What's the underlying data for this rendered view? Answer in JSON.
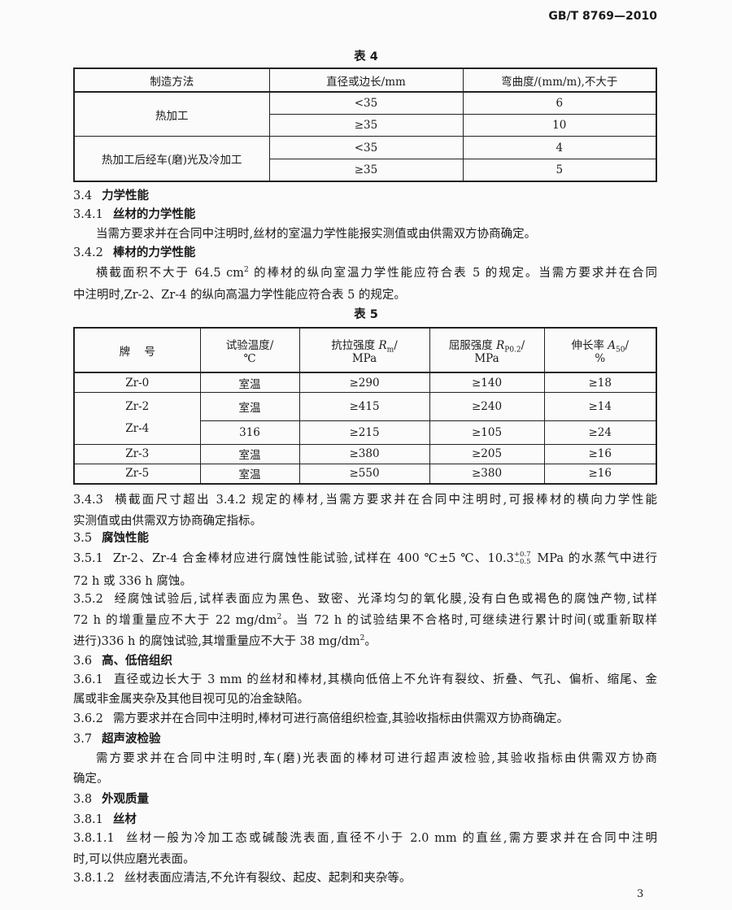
{
  "header": {
    "standard_no": "GB/T 8769—2010"
  },
  "table4": {
    "caption": "表 4",
    "headers": [
      "制造方法",
      "直径或边长/mm",
      "弯曲度/(mm/m),不大于"
    ],
    "groups": [
      {
        "method": "热加工",
        "rows": [
          [
            "<35",
            "6"
          ],
          [
            "≥35",
            "10"
          ]
        ]
      },
      {
        "method": "热加工后经车(磨)光及冷加工",
        "rows": [
          [
            "<35",
            "4"
          ],
          [
            "≥35",
            "5"
          ]
        ]
      }
    ]
  },
  "s3_4": {
    "num": "3.4",
    "title": "力学性能"
  },
  "s3_4_1": {
    "num": "3.4.1",
    "title": "丝材的力学性能",
    "p1": "当需方要求并在合同中注明时,丝材的室温力学性能报实测值或由供需双方协商确定。"
  },
  "s3_4_2": {
    "num": "3.4.2",
    "title": "棒材的力学性能",
    "l1a": "横截面积不大于 64.5 cm",
    "l1sup": "2",
    "l1b": " 的棒材的纵向室温力学性能应符合表 5 的规定。当需方要求并在合同",
    "l2": "中注明时,Zr-2、Zr-4 的纵向高温力学性能应符合表 5 的规定。"
  },
  "table5": {
    "caption": "表 5",
    "headers": {
      "grade": "牌    号",
      "temp": [
        "试验温度/",
        "℃"
      ],
      "rm": {
        "pre": "抗拉强度 ",
        "sym": "R",
        "sub": "m",
        "post": "/",
        "unit": "MPa"
      },
      "rp": {
        "pre": "屈服强度 ",
        "sym": "R",
        "sub": "P0.2",
        "post": "/",
        "unit": "MPa"
      },
      "a": {
        "pre": "伸长率 ",
        "sym": "A",
        "sub": "50",
        "post": "/",
        "unit": "%"
      }
    },
    "rows": [
      {
        "grade": "Zr-0",
        "temp": "室温",
        "rm": "≥290",
        "rp": "≥140",
        "a": "≥18"
      },
      {
        "grade": "Zr-2",
        "temp": "室温",
        "rm": "≥415",
        "rp": "≥240",
        "a": "≥14"
      },
      {
        "grade": "Zr-4",
        "temp": "316",
        "rm": "≥215",
        "rp": "≥105",
        "a": "≥24"
      },
      {
        "grade": "Zr-3",
        "temp": "室温",
        "rm": "≥380",
        "rp": "≥205",
        "a": "≥16"
      },
      {
        "grade": "Zr-5",
        "temp": "室温",
        "rm": "≥550",
        "rp": "≥380",
        "a": "≥16"
      }
    ]
  },
  "s3_4_3": {
    "num": "3.4.3",
    "l1": "横截面尺寸超出 3.4.2 规定的棒材,当需方要求并在合同中注明时,可报棒材的横向力学性能",
    "l2": "实测值或由供需双方协商确定指标。"
  },
  "s3_5": {
    "num": "3.5",
    "title": "腐蚀性能"
  },
  "s3_5_1": {
    "num": "3.5.1",
    "l1a": "Zr-2、Zr-4 合金棒材应进行腐蚀性能试验,试样在 400 ℃±5 ℃、10.3",
    "tol_plus": "+0.7",
    "tol_minus": "−0.5",
    "l1b": " MPa 的水蒸气中进行",
    "l2": "72 h 或 336 h 腐蚀。"
  },
  "s3_5_2": {
    "num": "3.5.2",
    "l1": "经腐蚀试验后,试样表面应为黑色、致密、光泽均匀的氧化膜,没有白色或褐色的腐蚀产物,试样",
    "l2a": "72 h 的增重量应不大于 22 mg/dm",
    "l2sup": "2",
    "l2b": "。当 72 h 的试验结果不合格时,可继续进行累计时间(或重新取样",
    "l3a": "进行)336 h 的腐蚀试验,其增重量应不大于 38 mg/dm",
    "l3sup": "2",
    "l3b": "。"
  },
  "s3_6": {
    "num": "3.6",
    "title": "高、低倍组织"
  },
  "s3_6_1": {
    "num": "3.6.1",
    "l1": "直径或边长大于 3 mm 的丝材和棒材,其横向低倍上不允许有裂纹、折叠、气孔、偏析、缩尾、金",
    "l2": "属或非金属夹杂及其他目视可见的冶金缺陷。"
  },
  "s3_6_2": {
    "num": "3.6.2",
    "l1": "需方要求并在合同中注明时,棒材可进行高倍组织检查,其验收指标由供需双方协商确定。"
  },
  "s3_7": {
    "num": "3.7",
    "title": "超声波检验",
    "l1": "需方要求并在合同中注明时,车(磨)光表面的棒材可进行超声波检验,其验收指标由供需双方协商",
    "l2": "确定。"
  },
  "s3_8": {
    "num": "3.8",
    "title": "外观质量"
  },
  "s3_8_1": {
    "num": "3.8.1",
    "title": "丝材"
  },
  "s3_8_1_1": {
    "num": "3.8.1.1",
    "l1": "丝材一般为冷加工态或碱酸洗表面,直径不小于 2.0 mm 的直丝,需方要求并在合同中注明",
    "l2": "时,可以供应磨光表面。"
  },
  "s3_8_1_2": {
    "num": "3.8.1.2",
    "l1": "丝材表面应清洁,不允许有裂纹、起皮、起刺和夹杂等。"
  },
  "page_number": "3"
}
